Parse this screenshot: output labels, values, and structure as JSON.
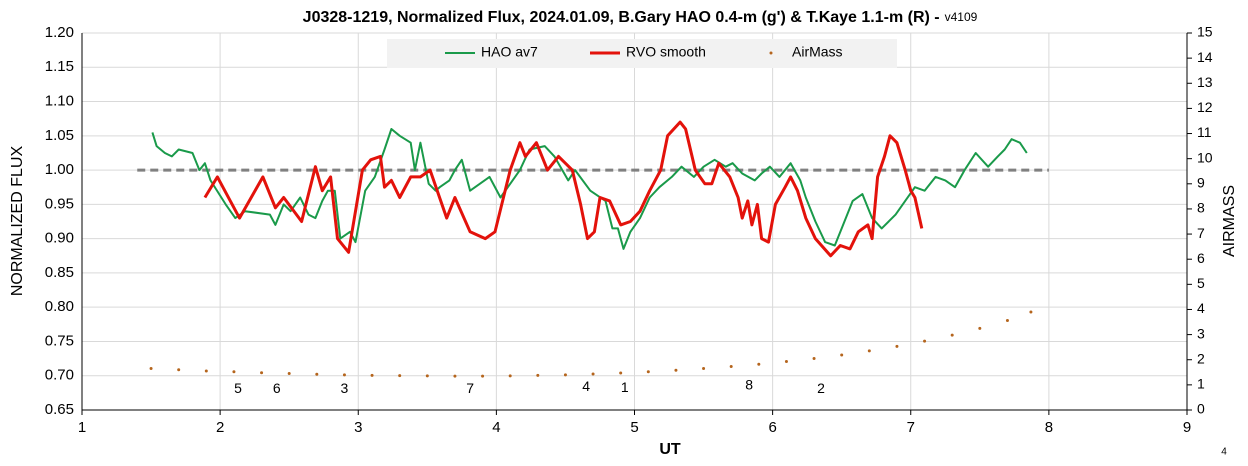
{
  "chart_data": {
    "type": "line",
    "title": "J0328-1219, Normalized Flux, 2024.01.09, B.Gary HAO 0.4-m (g') & T.Kaye 1.1-m (R) -",
    "version": "v4109",
    "x_label": "UT",
    "y_label": "NORMALIZED FLUX",
    "y2_label": "AIRMASS",
    "page_number": "4",
    "xlim": [
      1,
      9
    ],
    "xticks": [
      1,
      2,
      3,
      4,
      5,
      6,
      7,
      8,
      9
    ],
    "ylim": [
      0.65,
      1.2
    ],
    "yticks": [
      {
        "value": 0.65,
        "label": "0.65"
      },
      {
        "value": 0.7,
        "label": "0.70"
      },
      {
        "value": 0.75,
        "label": "0.75"
      },
      {
        "value": 0.8,
        "label": "0.80"
      },
      {
        "value": 0.85,
        "label": "0.85"
      },
      {
        "value": 0.9,
        "label": "0.90"
      },
      {
        "value": 0.95,
        "label": "0.95"
      },
      {
        "value": 1.0,
        "label": "1.00"
      },
      {
        "value": 1.05,
        "label": "1.05"
      },
      {
        "value": 1.1,
        "label": "1.10"
      },
      {
        "value": 1.15,
        "label": "1.15"
      },
      {
        "value": 1.2,
        "label": "1.20"
      }
    ],
    "y2lim": [
      0,
      15
    ],
    "y2ticks": [
      0,
      1,
      2,
      3,
      4,
      5,
      6,
      7,
      8,
      9,
      10,
      11,
      12,
      13,
      14,
      15
    ],
    "grid": true,
    "legend": "top",
    "reference_line": {
      "y": 1.0,
      "x": [
        1.4,
        8.0
      ],
      "color": "#808080"
    },
    "series": [
      {
        "name": "HAO av7",
        "color": "#1a9a4a",
        "style": "line",
        "width": 2,
        "x": [
          1.51,
          1.54,
          1.6,
          1.65,
          1.7,
          1.8,
          1.85,
          1.89,
          1.93,
          2.04,
          2.11,
          2.18,
          2.36,
          2.4,
          2.46,
          2.51,
          2.58,
          2.64,
          2.69,
          2.74,
          2.78,
          2.83,
          2.87,
          2.94,
          2.98,
          3.05,
          3.12,
          3.19,
          3.24,
          3.3,
          3.38,
          3.41,
          3.45,
          3.51,
          3.56,
          3.59,
          3.66,
          3.7,
          3.75,
          3.81,
          3.88,
          3.95,
          4.03,
          4.1,
          4.17,
          4.24,
          4.35,
          4.42,
          4.52,
          4.57,
          4.68,
          4.79,
          4.84,
          4.88,
          4.92,
          4.97,
          5.04,
          5.11,
          5.18,
          5.27,
          5.34,
          5.43,
          5.5,
          5.58,
          5.66,
          5.71,
          5.78,
          5.87,
          5.92,
          5.98,
          6.05,
          6.13,
          6.2,
          6.24,
          6.31,
          6.38,
          6.45,
          6.5,
          6.58,
          6.65,
          6.72,
          6.79,
          6.89,
          6.96,
          7.03,
          7.1,
          7.18,
          7.25,
          7.32,
          7.39,
          7.47,
          7.56,
          7.63,
          7.68,
          7.73,
          7.79,
          7.84
        ],
        "values": [
          1.055,
          1.035,
          1.025,
          1.02,
          1.03,
          1.025,
          1.0,
          1.01,
          0.985,
          0.95,
          0.93,
          0.94,
          0.935,
          0.92,
          0.95,
          0.94,
          0.96,
          0.935,
          0.93,
          0.955,
          0.97,
          0.97,
          0.9,
          0.91,
          0.895,
          0.97,
          0.99,
          1.03,
          1.06,
          1.05,
          1.04,
          1.0,
          1.04,
          0.98,
          0.97,
          0.975,
          0.985,
          1.0,
          1.015,
          0.97,
          0.98,
          0.99,
          0.96,
          0.98,
          1.0,
          1.03,
          1.035,
          1.02,
          0.985,
          1.0,
          0.97,
          0.955,
          0.915,
          0.915,
          0.885,
          0.91,
          0.93,
          0.96,
          0.975,
          0.99,
          1.005,
          0.99,
          1.005,
          1.015,
          1.005,
          1.01,
          0.995,
          0.985,
          0.995,
          1.005,
          0.99,
          1.01,
          0.985,
          0.96,
          0.925,
          0.895,
          0.89,
          0.915,
          0.955,
          0.965,
          0.93,
          0.915,
          0.935,
          0.955,
          0.975,
          0.97,
          0.99,
          0.985,
          0.975,
          1.0,
          1.025,
          1.005,
          1.02,
          1.03,
          1.045,
          1.04,
          1.025
        ]
      },
      {
        "name": "RVO smooth",
        "color": "#e3120b",
        "style": "line",
        "width": 3,
        "x": [
          1.89,
          1.98,
          2.14,
          2.31,
          2.4,
          2.46,
          2.59,
          2.69,
          2.74,
          2.8,
          2.85,
          2.93,
          3.03,
          3.09,
          3.16,
          3.19,
          3.24,
          3.3,
          3.38,
          3.45,
          3.52,
          3.64,
          3.7,
          3.81,
          3.92,
          3.99,
          4.1,
          4.17,
          4.21,
          4.29,
          4.37,
          4.45,
          4.55,
          4.61,
          4.66,
          4.71,
          4.75,
          4.82,
          4.9,
          4.97,
          5.04,
          5.11,
          5.19,
          5.24,
          5.33,
          5.37,
          5.44,
          5.51,
          5.56,
          5.61,
          5.69,
          5.75,
          5.78,
          5.82,
          5.85,
          5.89,
          5.92,
          5.97,
          6.02,
          6.09,
          6.13,
          6.18,
          6.24,
          6.31,
          6.42,
          6.49,
          6.56,
          6.62,
          6.69,
          6.72,
          6.76,
          6.81,
          6.85,
          6.9,
          6.96,
          7.0,
          7.03,
          7.08
        ],
        "values": [
          0.96,
          0.99,
          0.93,
          0.99,
          0.945,
          0.96,
          0.925,
          1.005,
          0.97,
          0.99,
          0.9,
          0.88,
          1.0,
          1.015,
          1.02,
          0.975,
          0.985,
          0.96,
          0.99,
          0.99,
          1.0,
          0.93,
          0.96,
          0.91,
          0.9,
          0.91,
          1.0,
          1.04,
          1.02,
          1.04,
          1.0,
          1.02,
          1.0,
          0.95,
          0.9,
          0.91,
          0.96,
          0.955,
          0.92,
          0.925,
          0.94,
          0.97,
          1.0,
          1.05,
          1.07,
          1.06,
          1.0,
          0.98,
          0.98,
          1.01,
          0.99,
          0.96,
          0.93,
          0.955,
          0.92,
          0.95,
          0.9,
          0.895,
          0.95,
          0.975,
          0.99,
          0.97,
          0.93,
          0.9,
          0.875,
          0.89,
          0.885,
          0.91,
          0.92,
          0.9,
          0.99,
          1.02,
          1.05,
          1.04,
          1.0,
          0.97,
          0.96,
          0.915
        ]
      },
      {
        "name": "AirMass",
        "color": "#b5651d",
        "style": "points",
        "axis": "y2",
        "x": [
          1.5,
          1.7,
          1.9,
          2.1,
          2.3,
          2.5,
          2.7,
          2.9,
          3.1,
          3.3,
          3.5,
          3.7,
          3.9,
          4.1,
          4.3,
          4.5,
          4.7,
          4.9,
          5.1,
          5.3,
          5.5,
          5.7,
          5.9,
          6.1,
          6.3,
          6.5,
          6.7,
          6.9,
          7.1,
          7.3,
          7.5,
          7.7,
          7.87
        ],
        "values": [
          1.65,
          1.6,
          1.55,
          1.52,
          1.48,
          1.45,
          1.42,
          1.4,
          1.38,
          1.37,
          1.36,
          1.35,
          1.35,
          1.36,
          1.38,
          1.4,
          1.43,
          1.47,
          1.52,
          1.58,
          1.65,
          1.73,
          1.82,
          1.93,
          2.05,
          2.19,
          2.35,
          2.53,
          2.74,
          2.98,
          3.25,
          3.56,
          3.9
        ]
      }
    ],
    "annotations": [
      {
        "text": "5",
        "x": 2.13,
        "y": 0.68
      },
      {
        "text": "6",
        "x": 2.41,
        "y": 0.68
      },
      {
        "text": "3",
        "x": 2.9,
        "y": 0.68
      },
      {
        "text": "7",
        "x": 3.81,
        "y": 0.68
      },
      {
        "text": "4",
        "x": 4.65,
        "y": 0.683
      },
      {
        "text": "1",
        "x": 4.93,
        "y": 0.682
      },
      {
        "text": "8",
        "x": 5.83,
        "y": 0.685
      },
      {
        "text": "2",
        "x": 6.35,
        "y": 0.68
      }
    ]
  }
}
